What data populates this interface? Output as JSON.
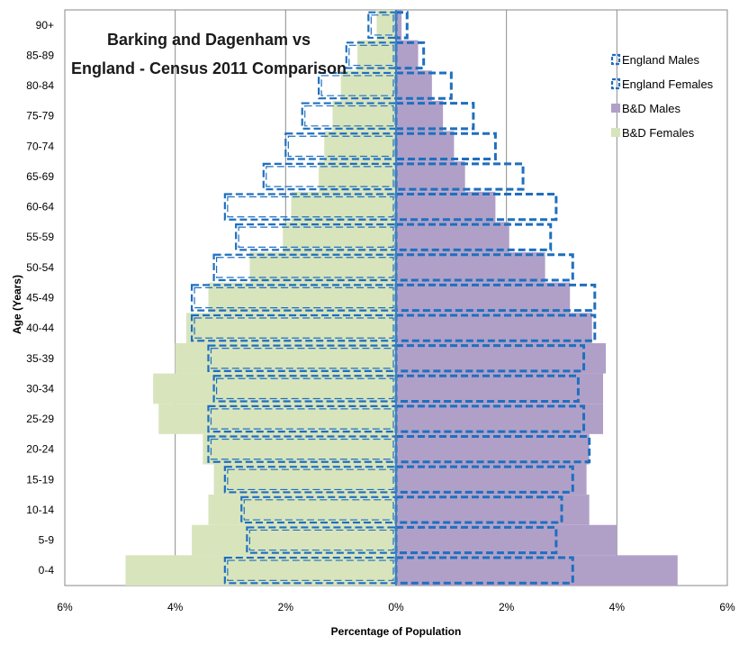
{
  "chart_data": {
    "type": "bar",
    "orientation": "horizontal-population-pyramid",
    "title_lines": [
      "Barking and Dagenham vs",
      "England - Census 2011 Comparison"
    ],
    "xlabel": "Percentage of Population",
    "ylabel": "Age (Years)",
    "xlim": [
      -6,
      6
    ],
    "x_ticks": [
      -6,
      -4,
      -2,
      0,
      2,
      4,
      6
    ],
    "x_tick_labels": [
      "6%",
      "4%",
      "2%",
      "0%",
      "2%",
      "4%",
      "6%"
    ],
    "categories": [
      "0-4",
      "5-9",
      "10-14",
      "15-19",
      "20-24",
      "25-29",
      "30-34",
      "35-39",
      "40-44",
      "45-49",
      "50-54",
      "55-59",
      "60-64",
      "65-69",
      "70-74",
      "75-79",
      "80-84",
      "85-89",
      "90+"
    ],
    "grid": "vertical",
    "legend_position": "top-right",
    "series": [
      {
        "name": "England Males",
        "side": "right",
        "style": "outline-dashed",
        "color": "#1f6fbf",
        "values": [
          3.2,
          2.9,
          3.0,
          3.2,
          3.5,
          3.4,
          3.3,
          3.4,
          3.6,
          3.6,
          3.2,
          2.8,
          2.9,
          2.3,
          1.8,
          1.4,
          1.0,
          0.5,
          0.2
        ]
      },
      {
        "name": "England Females",
        "side": "left",
        "style": "outline-double-dashed",
        "color": "#1f6fbf",
        "values": [
          3.1,
          2.7,
          2.8,
          3.1,
          3.4,
          3.4,
          3.3,
          3.4,
          3.7,
          3.7,
          3.3,
          2.9,
          3.1,
          2.4,
          2.0,
          1.7,
          1.4,
          0.9,
          0.5
        ]
      },
      {
        "name": "B&D Males",
        "side": "right",
        "style": "fill",
        "color": "#b0a0c8",
        "values": [
          5.1,
          4.0,
          3.5,
          3.45,
          3.5,
          3.75,
          3.75,
          3.8,
          3.55,
          3.15,
          2.7,
          2.05,
          1.8,
          1.25,
          1.05,
          0.85,
          0.65,
          0.4,
          0.1
        ]
      },
      {
        "name": "B&D Females",
        "side": "left",
        "style": "fill",
        "color": "#d8e4bc",
        "values": [
          4.9,
          3.7,
          3.4,
          3.3,
          3.5,
          4.3,
          4.4,
          4.0,
          3.8,
          3.4,
          2.65,
          2.05,
          1.9,
          1.4,
          1.3,
          1.15,
          1.0,
          0.7,
          0.35
        ]
      }
    ]
  }
}
